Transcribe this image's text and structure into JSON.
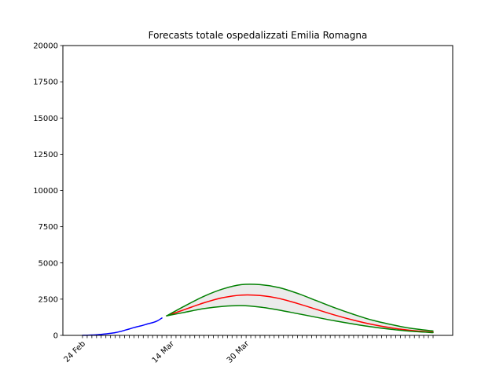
{
  "chart_data": {
    "type": "line",
    "title": "Forecasts totale ospedalizzati Emilia Romagna",
    "xlabel": "",
    "ylabel": "",
    "x_start": "2020-02-24",
    "x_end": "2020-05-09",
    "ylim": [
      0,
      20000
    ],
    "yticks": [
      0,
      2500,
      5000,
      7500,
      10000,
      12500,
      15000,
      17500,
      20000
    ],
    "xtick_labels": [
      {
        "date": "2020-02-24",
        "label": "24 Feb"
      },
      {
        "date": "2020-03-14",
        "label": "14 Mar"
      },
      {
        "date": "2020-03-30",
        "label": "30 Mar"
      }
    ],
    "grid": false,
    "legend": "none",
    "series": [
      {
        "role": "observed",
        "color": "#0000ff",
        "x": [
          "2020-02-24",
          "2020-02-25",
          "2020-02-26",
          "2020-02-27",
          "2020-02-28",
          "2020-02-29",
          "2020-03-01",
          "2020-03-02",
          "2020-03-03",
          "2020-03-04",
          "2020-03-05",
          "2020-03-06",
          "2020-03-07",
          "2020-03-08",
          "2020-03-09",
          "2020-03-10",
          "2020-03-11",
          "2020-03-12"
        ],
        "y": [
          5,
          10,
          25,
          40,
          70,
          100,
          140,
          190,
          260,
          350,
          440,
          540,
          620,
          700,
          800,
          880,
          1000,
          1200
        ]
      },
      {
        "role": "forecast-central",
        "color": "#ff0000",
        "x": [
          "2020-03-13",
          "2020-03-17",
          "2020-03-21",
          "2020-03-25",
          "2020-03-29",
          "2020-04-02",
          "2020-04-06",
          "2020-04-10",
          "2020-04-14",
          "2020-04-18",
          "2020-04-22",
          "2020-04-26",
          "2020-04-30",
          "2020-05-04",
          "2020-05-09"
        ],
        "y": [
          1350,
          1800,
          2250,
          2600,
          2780,
          2750,
          2550,
          2200,
          1800,
          1400,
          1050,
          750,
          520,
          350,
          220
        ]
      },
      {
        "role": "forecast-upper",
        "color": "#008000",
        "x": [
          "2020-03-13",
          "2020-03-17",
          "2020-03-21",
          "2020-03-25",
          "2020-03-29",
          "2020-04-02",
          "2020-04-06",
          "2020-04-10",
          "2020-04-14",
          "2020-04-18",
          "2020-04-22",
          "2020-04-26",
          "2020-04-30",
          "2020-05-04",
          "2020-05-09"
        ],
        "y": [
          1350,
          2050,
          2700,
          3200,
          3500,
          3500,
          3300,
          2900,
          2400,
          1900,
          1450,
          1050,
          750,
          500,
          300
        ]
      },
      {
        "role": "forecast-lower",
        "color": "#008000",
        "x": [
          "2020-03-13",
          "2020-03-17",
          "2020-03-21",
          "2020-03-25",
          "2020-03-29",
          "2020-04-02",
          "2020-04-06",
          "2020-04-10",
          "2020-04-14",
          "2020-04-18",
          "2020-04-22",
          "2020-04-26",
          "2020-04-30",
          "2020-05-04",
          "2020-05-09"
        ],
        "y": [
          1350,
          1600,
          1850,
          2000,
          2050,
          1950,
          1750,
          1500,
          1250,
          1000,
          780,
          580,
          420,
          290,
          190
        ]
      }
    ],
    "band_fill": "#ebebeb"
  }
}
